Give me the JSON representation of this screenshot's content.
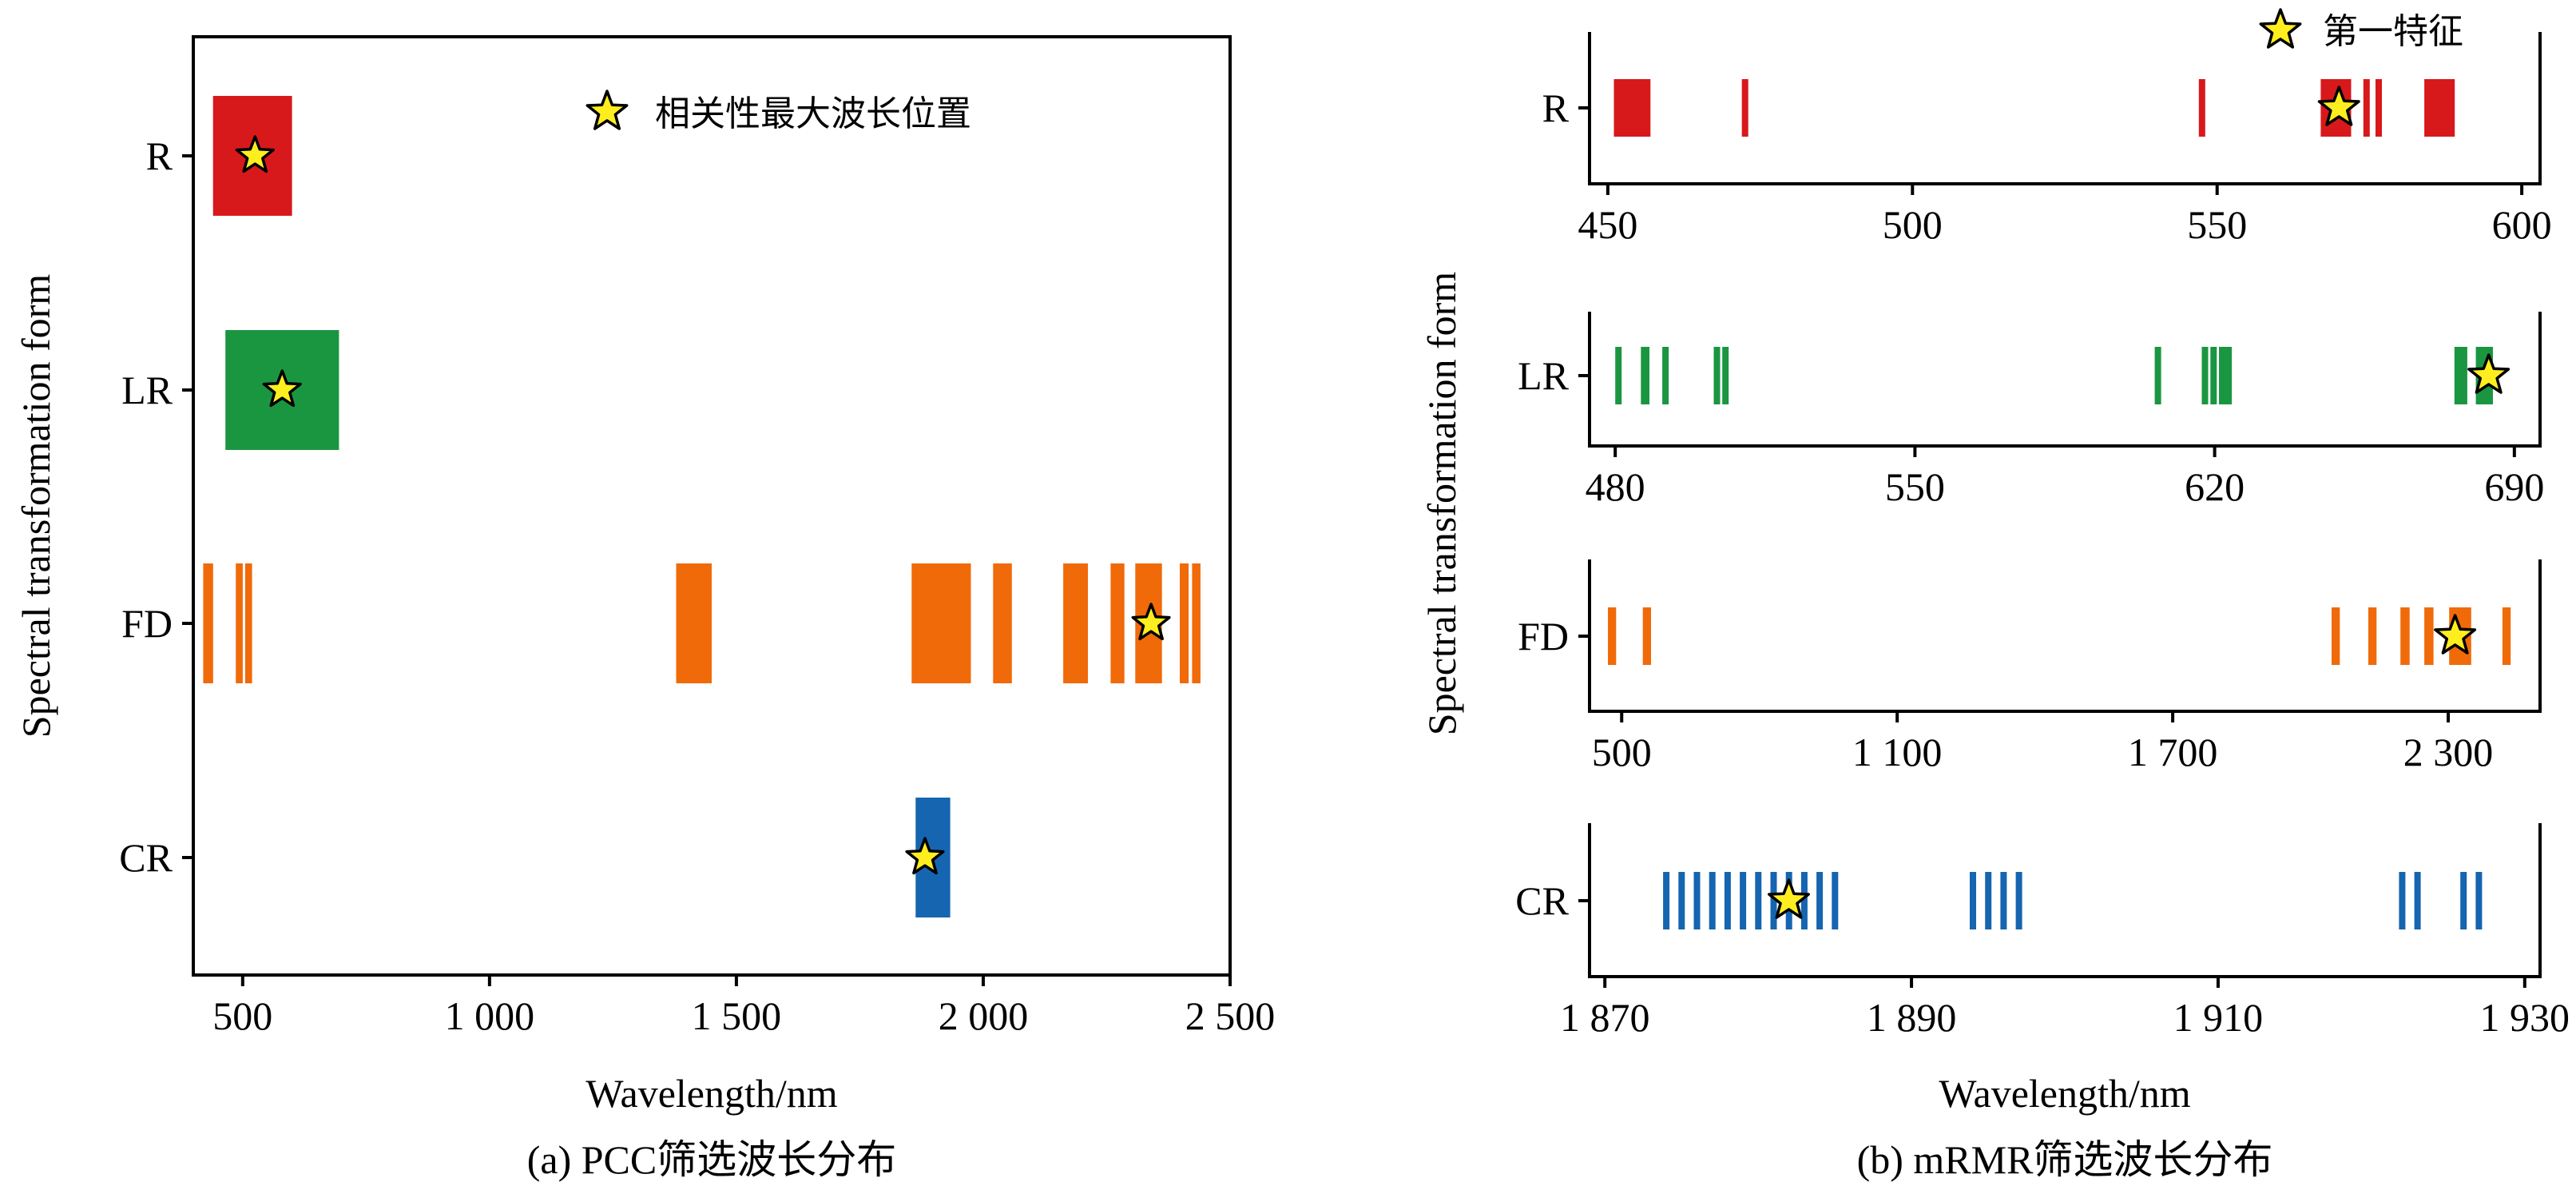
{
  "chart_data": [
    {
      "type": "bar",
      "panel": "a",
      "caption": "(a) PCC筛选波长分布",
      "xlabel": "Wavelength/nm",
      "ylabel": "Spectral transformation form",
      "xlim": [
        400,
        2500
      ],
      "xticks": [
        500,
        1000,
        1500,
        2000,
        2500
      ],
      "xtick_labels": [
        "500",
        "1 000",
        "1 500",
        "2 000",
        "2 500"
      ],
      "categories": [
        "R",
        "LR",
        "FD",
        "CR"
      ],
      "legend": {
        "label": "相关性最大波长位置",
        "marker": "star",
        "placement": "top-center"
      },
      "series": [
        {
          "name": "R",
          "color": "#d7191c",
          "ranges": [
            [
              440,
              600
            ]
          ],
          "star": 525
        },
        {
          "name": "LR",
          "color": "#1a9641",
          "ranges": [
            [
              465,
              695
            ]
          ],
          "star": 580
        },
        {
          "name": "FD",
          "color": "#f06a0a",
          "ranges": [
            [
              420,
              440
            ],
            [
              486,
              500
            ],
            [
              505,
              519
            ],
            [
              1378,
              1450
            ],
            [
              1855,
              1975
            ],
            [
              2020,
              2058
            ],
            [
              2162,
              2212
            ],
            [
              2258,
              2286
            ],
            [
              2308,
              2362
            ],
            [
              2398,
              2416
            ],
            [
              2423,
              2440
            ]
          ],
          "star": 2340
        },
        {
          "name": "CR",
          "color": "#1565b0",
          "ranges": [
            [
              1863,
              1933
            ]
          ],
          "star": 1882
        }
      ]
    },
    {
      "type": "bar",
      "panel": "b",
      "caption": "(b) mRMR筛选波长分布",
      "xlabel": "Wavelength/nm",
      "ylabel": "Spectral transformation form",
      "legend": {
        "label": "第一特征",
        "marker": "star",
        "placement": "top-right"
      },
      "subplots": [
        {
          "name": "R",
          "color": "#d7191c",
          "xlim": [
            447,
            603
          ],
          "xticks": [
            450,
            500,
            550,
            600
          ],
          "xtick_labels": [
            "450",
            "500",
            "550",
            "600"
          ],
          "ranges": [
            [
              451,
              457
            ],
            [
              472,
              473
            ],
            [
              547,
              548
            ],
            [
              567,
              572
            ],
            [
              574,
              575
            ],
            [
              576,
              577
            ],
            [
              584,
              589
            ]
          ],
          "star": 570
        },
        {
          "name": "LR",
          "color": "#1a9641",
          "xlim": [
            474,
            696
          ],
          "xticks": [
            480,
            550,
            620,
            690
          ],
          "xtick_labels": [
            "480",
            "550",
            "620",
            "690"
          ],
          "ranges": [
            [
              480,
              481.5
            ],
            [
              486,
              488
            ],
            [
              491,
              492.5
            ],
            [
              503,
              504
            ],
            [
              505,
              506
            ],
            [
              606,
              607.5
            ],
            [
              617,
              618
            ],
            [
              619,
              620
            ],
            [
              621,
              624
            ],
            [
              676,
              679
            ],
            [
              681,
              685
            ]
          ],
          "star": 684
        },
        {
          "name": "FD",
          "color": "#f06a0a",
          "xlim": [
            430,
            2500
          ],
          "xticks": [
            500,
            1100,
            1700,
            2300
          ],
          "xtick_labels": [
            "500",
            "1 100",
            "1 700",
            "2 300"
          ],
          "ranges": [
            [
              470,
              488
            ],
            [
              546,
              564
            ],
            [
              2046,
              2064
            ],
            [
              2126,
              2144
            ],
            [
              2196,
              2216
            ],
            [
              2248,
              2268
            ],
            [
              2302,
              2350
            ],
            [
              2418,
              2436
            ]
          ],
          "star": 2315
        },
        {
          "name": "CR",
          "color": "#1565b0",
          "xlim": [
            1869,
            1931
          ],
          "xticks": [
            1870,
            1890,
            1910,
            1930
          ],
          "xtick_labels": [
            "1 870",
            "1 890",
            "1 910",
            "1 930"
          ],
          "ranges": [
            [
              1873.8,
              1874.2
            ],
            [
              1874.8,
              1875.2
            ],
            [
              1875.8,
              1876.2
            ],
            [
              1876.8,
              1877.2
            ],
            [
              1877.8,
              1878.2
            ],
            [
              1878.8,
              1879.2
            ],
            [
              1879.8,
              1880.2
            ],
            [
              1880.8,
              1881.2
            ],
            [
              1881.8,
              1882.2
            ],
            [
              1882.8,
              1883.2
            ],
            [
              1883.8,
              1884.2
            ],
            [
              1884.8,
              1885.2
            ],
            [
              1893.8,
              1894.2
            ],
            [
              1894.8,
              1895.2
            ],
            [
              1895.8,
              1896.2
            ],
            [
              1896.8,
              1897.2
            ],
            [
              1921.8,
              1922.2
            ],
            [
              1922.8,
              1923.2
            ],
            [
              1925.8,
              1926.2
            ],
            [
              1926.8,
              1927.2
            ]
          ],
          "star": 1882
        }
      ]
    }
  ]
}
